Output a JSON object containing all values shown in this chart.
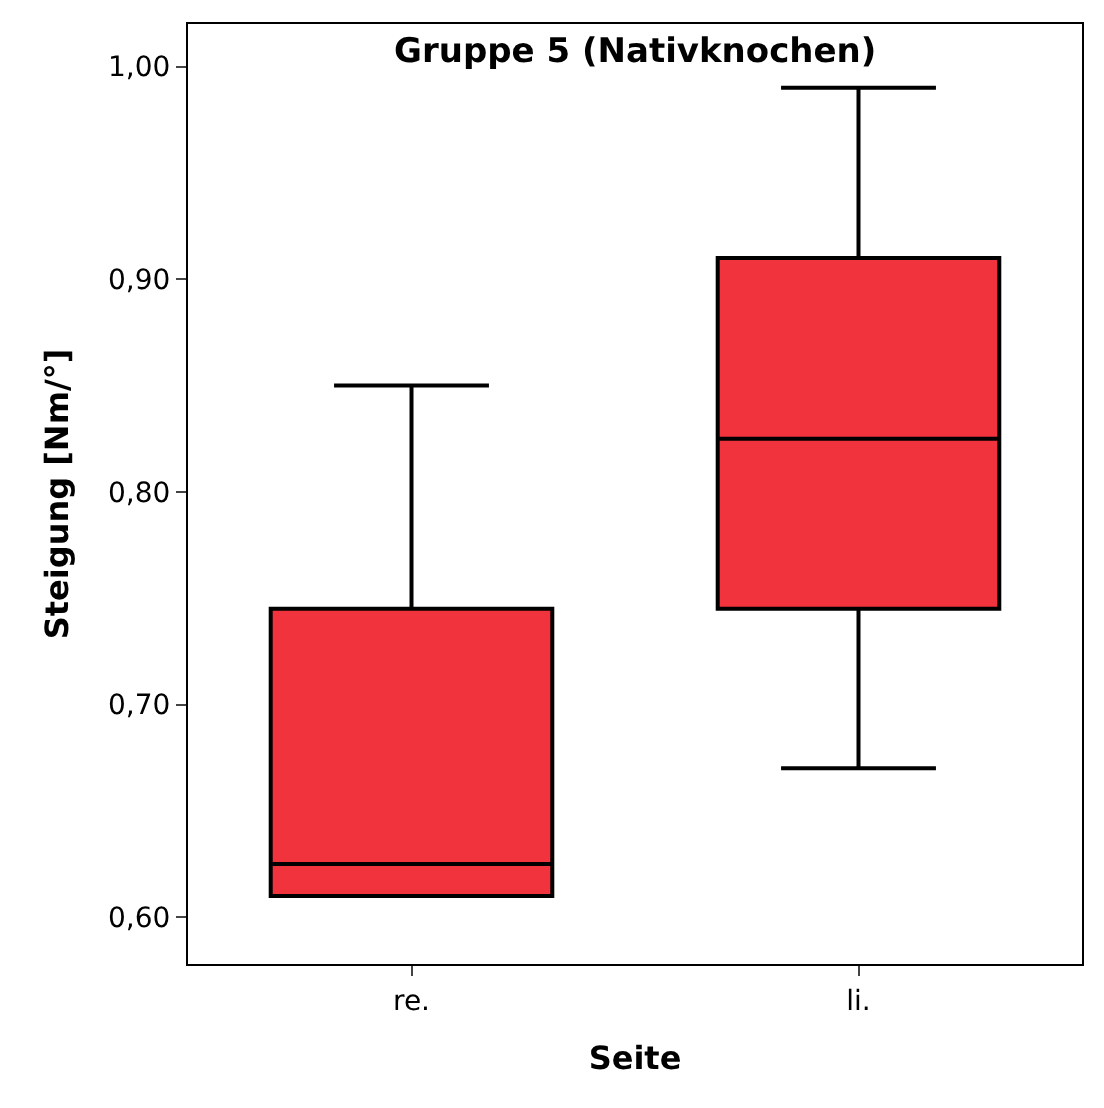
{
  "chart_data": {
    "type": "box",
    "title": "Gruppe 5 (Nativknochen)",
    "xlabel": "Seite",
    "ylabel": "Steigung [Nm/°]",
    "categories": [
      "re.",
      "li."
    ],
    "boxes": [
      {
        "low": 0.61,
        "q1": 0.61,
        "median": 0.625,
        "q3": 0.745,
        "high": 0.85
      },
      {
        "low": 0.67,
        "q1": 0.745,
        "median": 0.825,
        "q3": 0.91,
        "high": 0.99
      }
    ],
    "color": "#f0333c",
    "ylim": [
      0.578,
      1.02
    ],
    "yticks": [
      {
        "value": 0.6,
        "label": "0,60"
      },
      {
        "value": 0.7,
        "label": "0,70"
      },
      {
        "value": 0.8,
        "label": "0,80"
      },
      {
        "value": 0.9,
        "label": "0,90"
      },
      {
        "value": 1.0,
        "label": "1,00"
      }
    ],
    "legend": false
  }
}
